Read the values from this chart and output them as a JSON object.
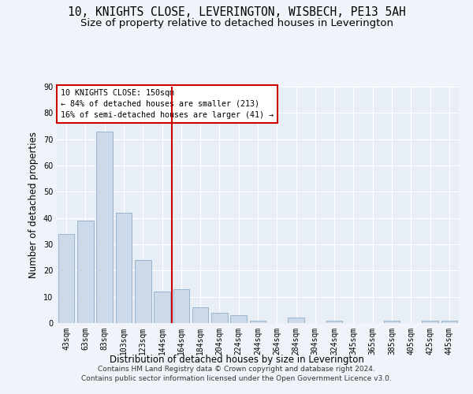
{
  "title1": "10, KNIGHTS CLOSE, LEVERINGTON, WISBECH, PE13 5AH",
  "title2": "Size of property relative to detached houses in Leverington",
  "xlabel": "Distribution of detached houses by size in Leverington",
  "ylabel": "Number of detached properties",
  "categories": [
    "43sqm",
    "63sqm",
    "83sqm",
    "103sqm",
    "123sqm",
    "144sqm",
    "164sqm",
    "184sqm",
    "204sqm",
    "224sqm",
    "244sqm",
    "264sqm",
    "284sqm",
    "304sqm",
    "324sqm",
    "345sqm",
    "365sqm",
    "385sqm",
    "405sqm",
    "425sqm",
    "445sqm"
  ],
  "values": [
    34,
    39,
    73,
    42,
    24,
    12,
    13,
    6,
    4,
    3,
    1,
    0,
    2,
    0,
    1,
    0,
    0,
    1,
    0,
    1,
    1
  ],
  "bar_color": "#ccd9e8",
  "bar_edge_color": "#9ab4cc",
  "vline_x": 5.5,
  "vline_color": "#cc0000",
  "annotation_text": "10 KNIGHTS CLOSE: 150sqm\n← 84% of detached houses are smaller (213)\n16% of semi-detached houses are larger (41) →",
  "annotation_box_color": "#ffffff",
  "annotation_box_edge": "#cc0000",
  "ylim": [
    0,
    90
  ],
  "yticks": [
    0,
    10,
    20,
    30,
    40,
    50,
    60,
    70,
    80,
    90
  ],
  "footnote": "Contains HM Land Registry data © Crown copyright and database right 2024.\nContains public sector information licensed under the Open Government Licence v3.0.",
  "bg_color": "#f0f4fa",
  "plot_bg_color": "#e8eef6",
  "grid_color": "#ffffff",
  "title_fontsize": 10.5,
  "subtitle_fontsize": 9.5,
  "axis_label_fontsize": 8.5,
  "tick_fontsize": 7,
  "footnote_fontsize": 6.5
}
